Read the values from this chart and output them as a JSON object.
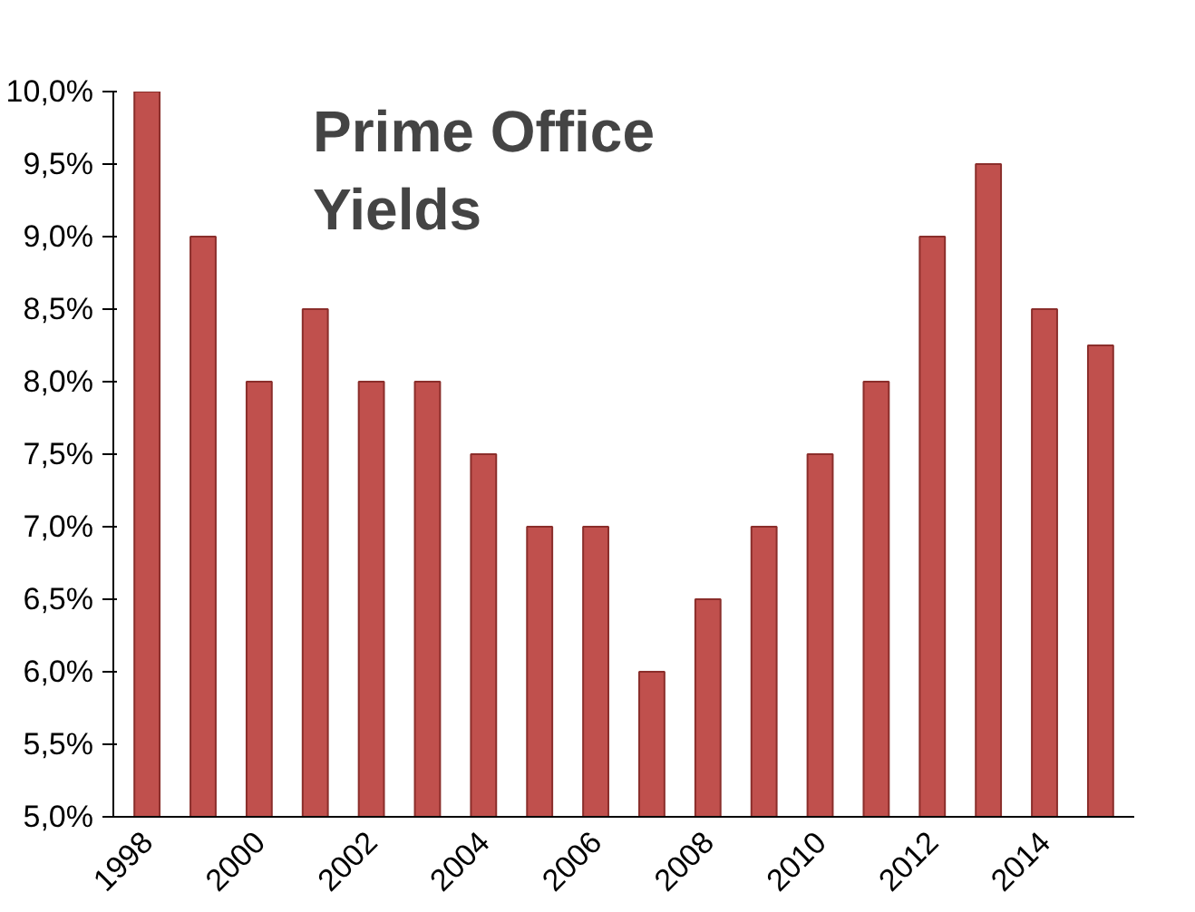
{
  "chart_data": {
    "type": "bar",
    "title": "Prime Office Yields",
    "categories": [
      "1998",
      null,
      "2000",
      null,
      "2002",
      null,
      "2004",
      null,
      "2006",
      null,
      "2008",
      null,
      "2010",
      null,
      "2012",
      null,
      "2014",
      null
    ],
    "values": [
      10,
      9,
      8,
      8.5,
      8,
      8,
      7.5,
      7,
      7,
      6,
      6.5,
      7,
      7.5,
      8,
      9,
      9.5,
      8.5,
      8.25
    ],
    "color": "#c0504d",
    "ylim": [
      5,
      10
    ],
    "yticks": [
      {
        "value": 5,
        "label": "5,0%"
      },
      {
        "value": 5.5,
        "label": "5,5%"
      },
      {
        "value": 6,
        "label": "6,0%"
      },
      {
        "value": 6.5,
        "label": "6,5%"
      },
      {
        "value": 7,
        "label": "7,0%"
      },
      {
        "value": 7.5,
        "label": "7,5%"
      },
      {
        "value": 8,
        "label": "8,0%"
      },
      {
        "value": 8.5,
        "label": "8,5%"
      },
      {
        "value": 9,
        "label": "9,0%"
      },
      {
        "value": 9.5,
        "label": "9,5%"
      },
      {
        "value": 10,
        "label": "10,0%"
      }
    ],
    "grid": false
  }
}
